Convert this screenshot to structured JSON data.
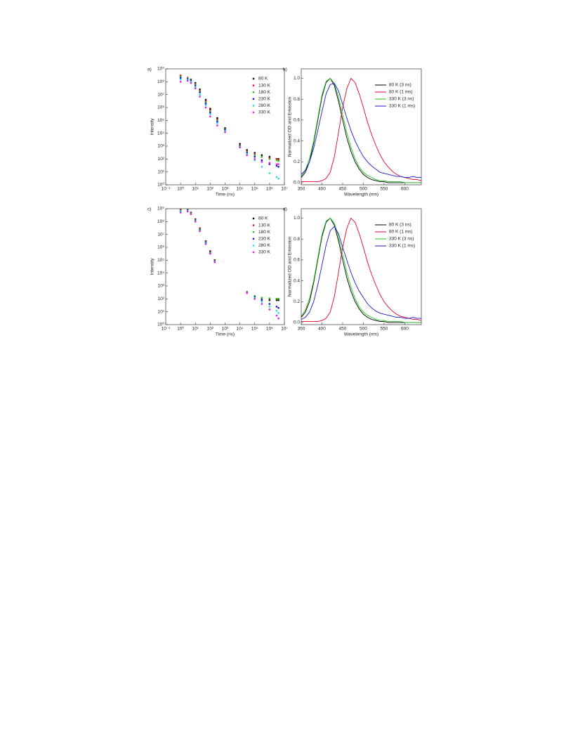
{
  "chart_data": [
    {
      "type": "scatter",
      "panel_label": "a)",
      "xlabel": "Time (ns)",
      "ylabel": "Intensity",
      "xscale": "log",
      "yscale": "log",
      "legend": "upper right",
      "xlim": [
        0.1,
        10000000
      ],
      "ylim": [
        1,
        1000000000
      ],
      "xticks": [
        {
          "value": 0.1,
          "label": "10⁻¹"
        },
        {
          "value": 1,
          "label": "10⁰"
        },
        {
          "value": 10,
          "label": "10¹"
        },
        {
          "value": 100,
          "label": "10²"
        },
        {
          "value": 1000,
          "label": "10³"
        },
        {
          "value": 10000,
          "label": "10⁴"
        },
        {
          "value": 100000,
          "label": "10⁵"
        },
        {
          "value": 1000000,
          "label": "10⁶"
        },
        {
          "value": 10000000,
          "label": "10⁷"
        }
      ],
      "yticks": [
        {
          "value": 1,
          "label": "10⁰"
        },
        {
          "value": 10,
          "label": "10¹"
        },
        {
          "value": 100,
          "label": "10²"
        },
        {
          "value": 1000,
          "label": "10³"
        },
        {
          "value": 10000,
          "label": "10⁴"
        },
        {
          "value": 100000,
          "label": "10⁵"
        },
        {
          "value": 1000000,
          "label": "10⁶"
        },
        {
          "value": 10000000,
          "label": "10⁷"
        },
        {
          "value": 100000000,
          "label": "10⁸"
        },
        {
          "value": 1000000000,
          "label": "10⁹"
        }
      ],
      "x": [
        1,
        3,
        5,
        10,
        20,
        50,
        100,
        300,
        1000,
        10000,
        30000,
        100000,
        300000,
        1000000,
        3000000,
        4000000
      ],
      "series": [
        {
          "name": "80 K",
          "color": "#000000",
          "values": [
            300000000,
            200000000,
            150000000,
            80000000,
            25000000,
            4000000,
            800000,
            150000,
            25000,
            1500,
            500,
            300,
            200,
            150,
            100,
            100
          ]
        },
        {
          "name": "130 K",
          "color": "#e8002a",
          "values": [
            300000000,
            200000000,
            140000000,
            70000000,
            20000000,
            3000000,
            600000,
            120000,
            20000,
            1200,
            400,
            250,
            150,
            120,
            100,
            90
          ]
        },
        {
          "name": "180 K",
          "color": "#22c422",
          "values": [
            250000000,
            180000000,
            130000000,
            60000000,
            18000000,
            2500000,
            500000,
            100000,
            20000,
            1100,
            350,
            200,
            150,
            100,
            80,
            70
          ]
        },
        {
          "name": "230 K",
          "color": "#1a1ad0",
          "values": [
            200000000,
            160000000,
            120000000,
            50000000,
            15000000,
            2000000,
            400000,
            80000,
            18000,
            1000,
            300,
            150,
            80,
            40,
            30,
            25
          ]
        },
        {
          "name": "280 K",
          "color": "#22d8f0",
          "values": [
            150000000,
            140000000,
            100000000,
            40000000,
            10000000,
            1500000,
            300000,
            60000,
            15000,
            900,
            250,
            80,
            25,
            8,
            4,
            3
          ]
        },
        {
          "name": "330 K",
          "color": "#e020e0",
          "values": [
            100000000,
            120000000,
            80000000,
            30000000,
            7000000,
            1000000,
            200000,
            40000,
            12000,
            800,
            200,
            100,
            60,
            50,
            40,
            40
          ]
        }
      ]
    },
    {
      "type": "line",
      "panel_label": "b)",
      "xlabel": "Wavelength (nm)",
      "ylabel": "Normalized OD and Emission",
      "legend": "upper right",
      "xlim": [
        350,
        640
      ],
      "ylim": [
        -0.02,
        1.09
      ],
      "xticks": [
        350,
        400,
        450,
        500,
        550,
        600
      ],
      "yticks": [
        {
          "value": 0,
          "label": "0.0"
        },
        0.2,
        0.4,
        0.6,
        0.8,
        {
          "value": 1,
          "label": "1.0"
        }
      ],
      "x": [
        350,
        360,
        370,
        380,
        390,
        400,
        410,
        420,
        430,
        440,
        450,
        460,
        470,
        480,
        490,
        500,
        510,
        520,
        530,
        540,
        550,
        560,
        570,
        580,
        590,
        600,
        610,
        620,
        630,
        640
      ],
      "series": [
        {
          "name": "80 K (3 ns)",
          "color": "#000000",
          "values": [
            0.05,
            0.1,
            0.2,
            0.38,
            0.6,
            0.82,
            0.96,
            1.0,
            0.93,
            0.78,
            0.6,
            0.43,
            0.3,
            0.2,
            0.13,
            0.08,
            0.05,
            0.03,
            0.02,
            0.01,
            0.01,
            0,
            0,
            0,
            0,
            0,
            0,
            0,
            0,
            0
          ]
        },
        {
          "name": "80 K (1 ms)",
          "color": "#e8002a",
          "values": [
            0.01,
            0.01,
            0.01,
            0.01,
            0.01,
            0.02,
            0.04,
            0.1,
            0.25,
            0.48,
            0.72,
            0.9,
            1.0,
            0.96,
            0.85,
            0.72,
            0.58,
            0.46,
            0.36,
            0.27,
            0.2,
            0.15,
            0.11,
            0.08,
            0.06,
            0.05,
            0.04,
            0.03,
            0.03,
            0.02
          ]
        },
        {
          "name": "330 K (3 ns)",
          "color": "#22c422",
          "values": [
            0.06,
            0.12,
            0.23,
            0.4,
            0.62,
            0.84,
            0.97,
            1.0,
            0.95,
            0.82,
            0.65,
            0.48,
            0.34,
            0.23,
            0.15,
            0.1,
            0.07,
            0.05,
            0.03,
            0.02,
            0.02,
            0.01,
            0.01,
            0.01,
            0.01,
            0,
            0,
            0,
            0,
            0
          ]
        },
        {
          "name": "330 K (1 ms)",
          "color": "#1a1ad0",
          "values": [
            0.08,
            0.12,
            0.2,
            0.33,
            0.5,
            0.68,
            0.85,
            0.94,
            0.95,
            0.88,
            0.75,
            0.62,
            0.5,
            0.4,
            0.32,
            0.25,
            0.2,
            0.16,
            0.13,
            0.1,
            0.09,
            0.08,
            0.07,
            0.06,
            0.06,
            0.05,
            0.05,
            0.06,
            0.05,
            0.05
          ]
        }
      ]
    },
    {
      "type": "scatter",
      "panel_label": "c)",
      "xlabel": "Time (ns)",
      "ylabel": "Intensity",
      "xscale": "log",
      "yscale": "log",
      "legend": "upper right",
      "xlim": [
        0.1,
        10000000
      ],
      "ylim": [
        1,
        1000000000
      ],
      "xticks": [
        {
          "value": 0.1,
          "label": "10⁻¹"
        },
        {
          "value": 1,
          "label": "10⁰"
        },
        {
          "value": 10,
          "label": "10¹"
        },
        {
          "value": 100,
          "label": "10²"
        },
        {
          "value": 1000,
          "label": "10³"
        },
        {
          "value": 10000,
          "label": "10⁴"
        },
        {
          "value": 100000,
          "label": "10⁵"
        },
        {
          "value": 1000000,
          "label": "10⁶"
        },
        {
          "value": 10000000,
          "label": "10⁷"
        }
      ],
      "yticks": [
        {
          "value": 1,
          "label": "10⁰"
        },
        {
          "value": 10,
          "label": "10¹"
        },
        {
          "value": 100,
          "label": "10²"
        },
        {
          "value": 1000,
          "label": "10³"
        },
        {
          "value": 10000,
          "label": "10⁴"
        },
        {
          "value": 100000,
          "label": "10⁵"
        },
        {
          "value": 1000000,
          "label": "10⁶"
        },
        {
          "value": 10000000,
          "label": "10⁷"
        },
        {
          "value": 100000000,
          "label": "10⁸"
        },
        {
          "value": 1000000000,
          "label": "10⁹"
        }
      ],
      "x": [
        1,
        3,
        5,
        10,
        20,
        50,
        100,
        200,
        30000,
        100000,
        300000,
        1000000,
        3000000,
        4000000
      ],
      "series": [
        {
          "name": "80 K",
          "color": "#000000",
          "values": [
            800000000,
            800000000,
            500000000,
            150000000,
            30000000,
            3000000,
            500000,
            100000,
            300,
            150,
            100,
            80,
            80,
            80
          ]
        },
        {
          "name": "130 K",
          "color": "#e8002a",
          "values": [
            800000000,
            800000000,
            500000000,
            140000000,
            28000000,
            2800000,
            450000,
            90000,
            320,
            160,
            110,
            100,
            100,
            100
          ]
        },
        {
          "name": "180 K",
          "color": "#22c422",
          "values": [
            700000000,
            750000000,
            450000000,
            130000000,
            25000000,
            2500000,
            400000,
            85000,
            350,
            170,
            120,
            110,
            100,
            100
          ]
        },
        {
          "name": "230 K",
          "color": "#1a1ad0",
          "values": [
            600000000,
            700000000,
            420000000,
            120000000,
            22000000,
            2200000,
            380000,
            80000,
            330,
            140,
            80,
            40,
            25,
            20
          ]
        },
        {
          "name": "280 K",
          "color": "#22d8f0",
          "values": [
            600000000,
            650000000,
            400000000,
            110000000,
            20000000,
            2000000,
            350000,
            75000,
            300,
            120,
            60,
            25,
            12,
            8
          ]
        },
        {
          "name": "330 K",
          "color": "#e020e0",
          "values": [
            500000000,
            600000000,
            380000000,
            100000000,
            18000000,
            1800000,
            320000,
            70000,
            280,
            100,
            40,
            15,
            5,
            3
          ]
        }
      ]
    },
    {
      "type": "line",
      "panel_label": "d)",
      "xlabel": "Wavelength (nm)",
      "ylabel": "Normalized OD and Emission",
      "legend": "upper right",
      "xlim": [
        350,
        640
      ],
      "ylim": [
        -0.02,
        1.09
      ],
      "xticks": [
        350,
        400,
        450,
        500,
        550,
        600
      ],
      "yticks": [
        {
          "value": 0,
          "label": "0.0"
        },
        0.2,
        0.4,
        0.6,
        0.8,
        {
          "value": 1,
          "label": "1.0"
        }
      ],
      "x": [
        350,
        360,
        370,
        380,
        390,
        400,
        410,
        420,
        430,
        440,
        450,
        460,
        470,
        480,
        490,
        500,
        510,
        520,
        530,
        540,
        550,
        560,
        570,
        580,
        590,
        600,
        610,
        620,
        630,
        640
      ],
      "series": [
        {
          "name": "80 K (3 ns)",
          "color": "#000000",
          "values": [
            0.05,
            0.1,
            0.2,
            0.38,
            0.6,
            0.82,
            0.96,
            1.0,
            0.93,
            0.78,
            0.6,
            0.43,
            0.3,
            0.2,
            0.13,
            0.08,
            0.05,
            0.03,
            0.02,
            0.01,
            0.01,
            0,
            0,
            0,
            0,
            0,
            0,
            0,
            0,
            0
          ]
        },
        {
          "name": "80 K (1 ms)",
          "color": "#e8002a",
          "values": [
            0.01,
            0.01,
            0.01,
            0.01,
            0.01,
            0.02,
            0.04,
            0.1,
            0.25,
            0.48,
            0.72,
            0.9,
            1.0,
            0.96,
            0.85,
            0.72,
            0.58,
            0.46,
            0.36,
            0.27,
            0.2,
            0.15,
            0.11,
            0.08,
            0.06,
            0.05,
            0.04,
            0.03,
            0.03,
            0.02
          ]
        },
        {
          "name": "330 K (3 ns)",
          "color": "#22c422",
          "values": [
            0.06,
            0.12,
            0.23,
            0.4,
            0.62,
            0.84,
            0.97,
            1.0,
            0.95,
            0.82,
            0.65,
            0.48,
            0.34,
            0.23,
            0.15,
            0.1,
            0.07,
            0.05,
            0.03,
            0.02,
            0.02,
            0.01,
            0.01,
            0.01,
            0.01,
            0,
            0,
            0,
            0,
            0
          ]
        },
        {
          "name": "330 K (1 ms)",
          "color": "#1a1ad0",
          "values": [
            0.03,
            0.05,
            0.1,
            0.2,
            0.36,
            0.55,
            0.74,
            0.88,
            0.92,
            0.85,
            0.72,
            0.6,
            0.48,
            0.38,
            0.3,
            0.24,
            0.18,
            0.14,
            0.11,
            0.09,
            0.08,
            0.07,
            0.06,
            0.05,
            0.05,
            0.04,
            0.04,
            0.05,
            0.04,
            0.04
          ]
        }
      ]
    }
  ]
}
